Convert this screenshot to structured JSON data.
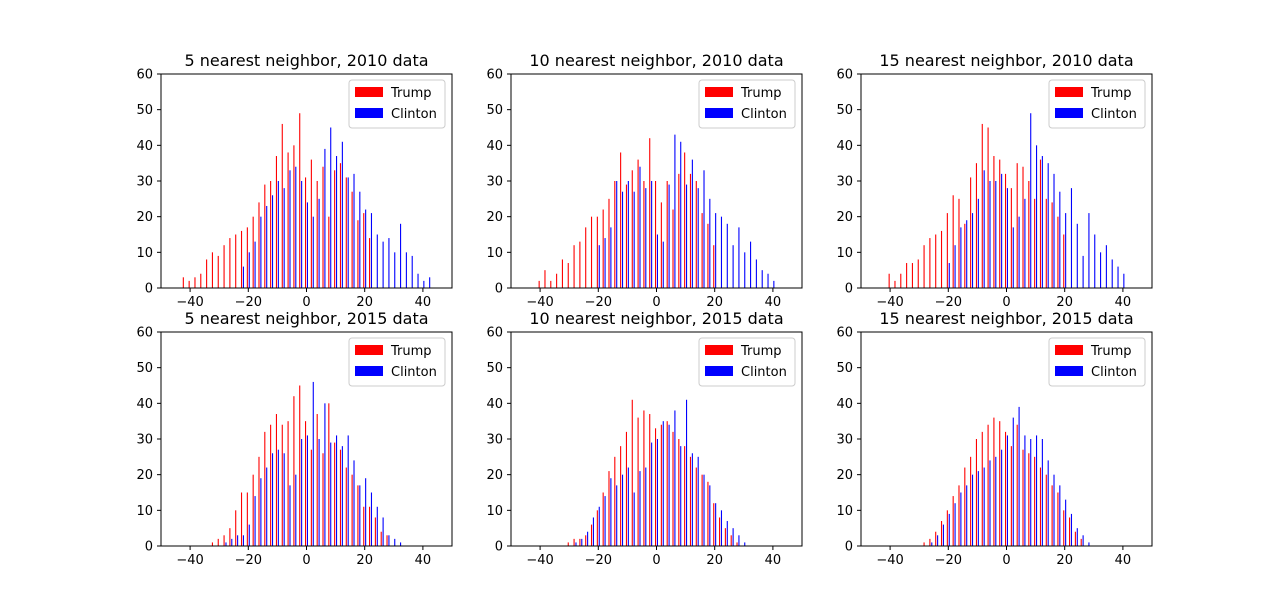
{
  "figure": {
    "background": "#ffffff"
  },
  "colors": {
    "trump": "#ff0000",
    "clinton": "#0000ff",
    "legend_border": "#cccccc"
  },
  "chart_data": [
    {
      "type": "bar",
      "title": "5 nearest neighbor, 2010 data",
      "xlim": [
        -50,
        50
      ],
      "ylim": [
        0,
        60
      ],
      "xticks": [
        -40,
        -20,
        0,
        20,
        40
      ],
      "yticks": [
        0,
        10,
        20,
        30,
        40,
        50,
        60
      ],
      "grid": false,
      "legend_position": "top-right",
      "series": [
        {
          "name": "Trump",
          "color": "#ff0000",
          "x": [
            -42,
            -40,
            -38,
            -36,
            -34,
            -32,
            -30,
            -28,
            -26,
            -24,
            -22,
            -20,
            -18,
            -16,
            -14,
            -12,
            -10,
            -8,
            -6,
            -4,
            -2,
            0,
            2,
            4,
            6,
            8,
            10,
            12,
            14,
            16,
            18,
            20,
            22
          ],
          "values": [
            3,
            2,
            3,
            4,
            8,
            10,
            9,
            12,
            14,
            15,
            16,
            17,
            20,
            24,
            29,
            30,
            37,
            46,
            38,
            40,
            49,
            31,
            36,
            30,
            34,
            20,
            33,
            35,
            31,
            27,
            19,
            21,
            14
          ]
        },
        {
          "name": "Clinton",
          "color": "#0000ff",
          "x": [
            -22,
            -20,
            -18,
            -16,
            -14,
            -12,
            -10,
            -8,
            -6,
            -4,
            -2,
            0,
            2,
            4,
            6,
            8,
            10,
            12,
            14,
            16,
            18,
            20,
            22,
            24,
            26,
            28,
            30,
            32,
            34,
            36,
            38,
            40,
            42
          ],
          "values": [
            6,
            10,
            13,
            20,
            23,
            26,
            30,
            28,
            33,
            34,
            30,
            24,
            20,
            25,
            39,
            45,
            37,
            41,
            31,
            32,
            27,
            22,
            21,
            15,
            13,
            14,
            10,
            18,
            10,
            9,
            4,
            2,
            3
          ]
        }
      ]
    },
    {
      "type": "bar",
      "title": "10 nearest neighbor, 2010 data",
      "xlim": [
        -50,
        50
      ],
      "ylim": [
        0,
        60
      ],
      "xticks": [
        -40,
        -20,
        0,
        20,
        40
      ],
      "yticks": [
        0,
        10,
        20,
        30,
        40,
        50,
        60
      ],
      "grid": false,
      "legend_position": "top-right",
      "series": [
        {
          "name": "Trump",
          "color": "#ff0000",
          "x": [
            -40,
            -38,
            -36,
            -34,
            -32,
            -30,
            -28,
            -26,
            -24,
            -22,
            -20,
            -18,
            -16,
            -14,
            -12,
            -10,
            -8,
            -6,
            -4,
            -2,
            0,
            2,
            4,
            6,
            8,
            10,
            12,
            14,
            16,
            18,
            20
          ],
          "values": [
            2,
            5,
            2,
            4,
            8,
            7,
            12,
            13,
            17,
            20,
            20,
            22,
            25,
            30,
            38,
            29,
            33,
            36,
            30,
            42,
            30,
            24,
            30,
            22,
            32,
            38,
            32,
            30,
            21,
            18,
            12
          ]
        },
        {
          "name": "Clinton",
          "color": "#0000ff",
          "x": [
            -20,
            -18,
            -16,
            -14,
            -12,
            -10,
            -8,
            -6,
            -4,
            -2,
            0,
            2,
            4,
            6,
            8,
            10,
            12,
            14,
            16,
            18,
            20,
            22,
            24,
            26,
            28,
            30,
            32,
            34,
            36,
            38,
            40
          ],
          "values": [
            12,
            14,
            17,
            30,
            27,
            30,
            27,
            34,
            28,
            30,
            15,
            13,
            29,
            43,
            41,
            29,
            36,
            28,
            33,
            25,
            21,
            20,
            18,
            12,
            17,
            10,
            13,
            8,
            5,
            4,
            2
          ]
        }
      ]
    },
    {
      "type": "bar",
      "title": "15 nearest neighbor, 2010 data",
      "xlim": [
        -50,
        50
      ],
      "ylim": [
        0,
        60
      ],
      "xticks": [
        -40,
        -20,
        0,
        20,
        40
      ],
      "yticks": [
        0,
        10,
        20,
        30,
        40,
        50,
        60
      ],
      "grid": false,
      "legend_position": "top-right",
      "series": [
        {
          "name": "Trump",
          "color": "#ff0000",
          "x": [
            -40,
            -38,
            -36,
            -34,
            -32,
            -30,
            -28,
            -26,
            -24,
            -22,
            -20,
            -18,
            -16,
            -14,
            -12,
            -10,
            -8,
            -6,
            -4,
            -2,
            0,
            2,
            4,
            6,
            8,
            10,
            12,
            14,
            16,
            18,
            20
          ],
          "values": [
            4,
            2,
            4,
            7,
            7,
            8,
            12,
            14,
            15,
            16,
            21,
            26,
            25,
            18,
            31,
            35,
            46,
            45,
            37,
            36,
            32,
            28,
            35,
            34,
            30,
            25,
            36,
            25,
            24,
            20,
            15
          ]
        },
        {
          "name": "Clinton",
          "color": "#0000ff",
          "x": [
            -20,
            -18,
            -16,
            -14,
            -12,
            -10,
            -8,
            -6,
            -4,
            -2,
            0,
            2,
            4,
            6,
            8,
            10,
            12,
            14,
            16,
            18,
            20,
            22,
            24,
            26,
            28,
            30,
            32,
            34,
            36,
            38,
            40
          ],
          "values": [
            7,
            12,
            17,
            19,
            21,
            25,
            33,
            30,
            30,
            32,
            28,
            17,
            20,
            25,
            49,
            40,
            37,
            35,
            32,
            27,
            21,
            28,
            18,
            9,
            21,
            15,
            10,
            12,
            8,
            6,
            4
          ]
        }
      ]
    },
    {
      "type": "bar",
      "title": "5 nearest neighbor, 2015 data",
      "xlim": [
        -50,
        50
      ],
      "ylim": [
        0,
        60
      ],
      "xticks": [
        -40,
        -20,
        0,
        20,
        40
      ],
      "yticks": [
        0,
        10,
        20,
        30,
        40,
        50,
        60
      ],
      "grid": false,
      "legend_position": "top-right",
      "series": [
        {
          "name": "Trump",
          "color": "#ff0000",
          "x": [
            -32,
            -30,
            -28,
            -26,
            -24,
            -22,
            -20,
            -18,
            -16,
            -14,
            -12,
            -10,
            -8,
            -6,
            -4,
            -2,
            0,
            2,
            4,
            6,
            8,
            10,
            12,
            14,
            16,
            18,
            20,
            22,
            24,
            26,
            28
          ],
          "values": [
            1,
            2,
            3,
            5,
            10,
            15,
            15,
            20,
            25,
            32,
            34,
            37,
            34,
            35,
            42,
            45,
            35,
            27,
            37,
            26,
            40,
            29,
            27,
            22,
            20,
            17,
            11,
            11,
            8,
            4,
            3
          ]
        },
        {
          "name": "Clinton",
          "color": "#0000ff",
          "x": [
            -28,
            -26,
            -24,
            -22,
            -20,
            -18,
            -16,
            -14,
            -12,
            -10,
            -8,
            -6,
            -4,
            -2,
            0,
            2,
            4,
            6,
            8,
            10,
            12,
            14,
            16,
            18,
            20,
            22,
            24,
            26,
            28,
            30,
            32
          ],
          "values": [
            1,
            2,
            3,
            3,
            6,
            14,
            19,
            22,
            26,
            27,
            26,
            17,
            20,
            30,
            31,
            46,
            30,
            40,
            29,
            31,
            28,
            31,
            24,
            17,
            19,
            15,
            11,
            8,
            3,
            2,
            1
          ]
        }
      ]
    },
    {
      "type": "bar",
      "title": "10 nearest neighbor, 2015 data",
      "xlim": [
        -50,
        50
      ],
      "ylim": [
        0,
        60
      ],
      "xticks": [
        -40,
        -20,
        0,
        20,
        40
      ],
      "yticks": [
        0,
        10,
        20,
        30,
        40,
        50,
        60
      ],
      "grid": false,
      "legend_position": "top-right",
      "series": [
        {
          "name": "Trump",
          "color": "#ff0000",
          "x": [
            -30,
            -28,
            -26,
            -24,
            -22,
            -20,
            -18,
            -16,
            -14,
            -12,
            -10,
            -8,
            -6,
            -4,
            -2,
            0,
            2,
            4,
            6,
            8,
            10,
            12,
            14,
            16,
            18,
            20,
            22,
            24,
            26,
            28
          ],
          "values": [
            1,
            2,
            2,
            3,
            6,
            10,
            15,
            21,
            25,
            28,
            32,
            41,
            36,
            38,
            37,
            33,
            34,
            35,
            32,
            30,
            28,
            25,
            22,
            20,
            18,
            12,
            8,
            5,
            3,
            1
          ]
        },
        {
          "name": "Clinton",
          "color": "#0000ff",
          "x": [
            -28,
            -26,
            -24,
            -22,
            -20,
            -18,
            -16,
            -14,
            -12,
            -10,
            -8,
            -6,
            -4,
            -2,
            0,
            2,
            4,
            6,
            8,
            10,
            12,
            14,
            16,
            18,
            20,
            22,
            24,
            26,
            28,
            30
          ],
          "values": [
            1,
            2,
            4,
            8,
            11,
            14,
            19,
            17,
            20,
            22,
            15,
            21,
            22,
            29,
            30,
            35,
            34,
            38,
            28,
            41,
            26,
            25,
            20,
            17,
            12,
            10,
            7,
            5,
            3,
            1
          ]
        }
      ]
    },
    {
      "type": "bar",
      "title": "15 nearest neighbor, 2015 data",
      "xlim": [
        -50,
        50
      ],
      "ylim": [
        0,
        60
      ],
      "xticks": [
        -40,
        -20,
        0,
        20,
        40
      ],
      "yticks": [
        0,
        10,
        20,
        30,
        40,
        50,
        60
      ],
      "grid": false,
      "legend_position": "top-right",
      "series": [
        {
          "name": "Trump",
          "color": "#ff0000",
          "x": [
            -28,
            -26,
            -24,
            -22,
            -20,
            -18,
            -16,
            -14,
            -12,
            -10,
            -8,
            -6,
            -4,
            -2,
            0,
            2,
            4,
            6,
            8,
            10,
            12,
            14,
            16,
            18,
            20,
            22,
            24,
            26
          ],
          "values": [
            1,
            2,
            4,
            7,
            10,
            14,
            17,
            22,
            25,
            30,
            32,
            34,
            36,
            35,
            32,
            28,
            34,
            27,
            26,
            25,
            22,
            20,
            17,
            15,
            10,
            8,
            4,
            2
          ]
        },
        {
          "name": "Clinton",
          "color": "#0000ff",
          "x": [
            -26,
            -24,
            -22,
            -20,
            -18,
            -16,
            -14,
            -12,
            -10,
            -8,
            -6,
            -4,
            -2,
            0,
            2,
            4,
            6,
            8,
            10,
            12,
            14,
            16,
            18,
            20,
            22,
            24,
            26,
            28
          ],
          "values": [
            1,
            3,
            6,
            9,
            12,
            15,
            17,
            20,
            21,
            22,
            24,
            25,
            27,
            31,
            36,
            39,
            31,
            30,
            31,
            30,
            24,
            20,
            17,
            13,
            9,
            5,
            3,
            1
          ]
        }
      ]
    }
  ]
}
